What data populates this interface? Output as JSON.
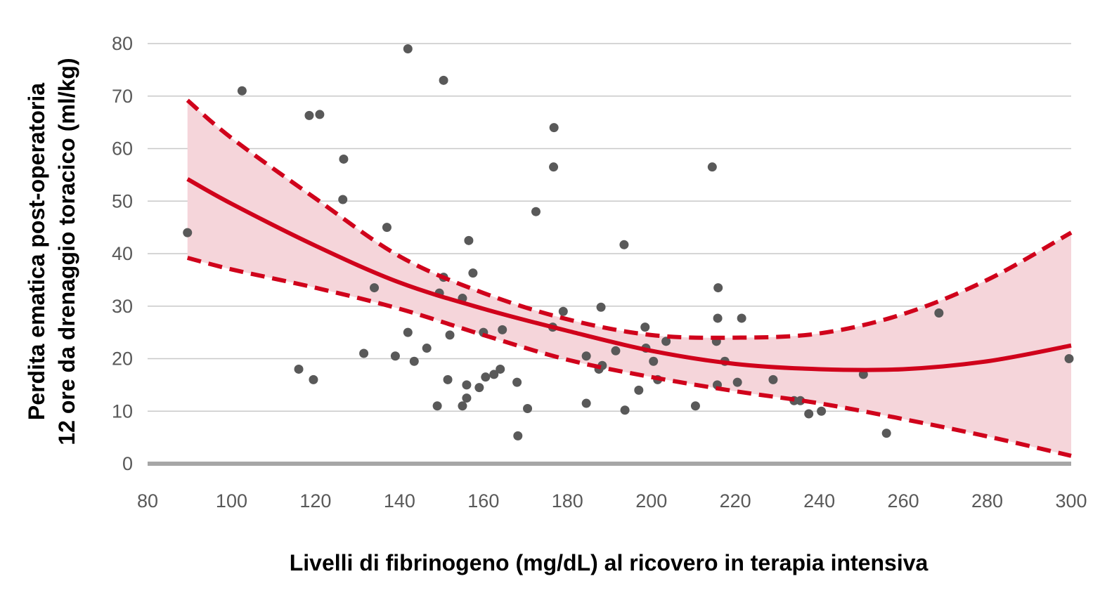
{
  "chart_data": {
    "type": "scatter",
    "title": "",
    "xlabel": "Livelli di fibrinogeno (mg/dL) al ricovero in terapia intensiva",
    "ylabel_lines": [
      "Perdita ematica post-operatoria",
      "12 ore da drenaggio toracico (ml/kg)"
    ],
    "xlim": [
      80,
      300
    ],
    "ylim": [
      0,
      80
    ],
    "x_ticks": [
      80,
      100,
      120,
      140,
      160,
      180,
      200,
      220,
      240,
      260,
      280,
      300
    ],
    "y_ticks": [
      0,
      10,
      20,
      30,
      40,
      50,
      60,
      70,
      80
    ],
    "grid": true,
    "colors": {
      "points": "#595959",
      "fit": "#d0021b",
      "band": "#f5d5da",
      "grid": "#c8c8c8",
      "xaxis": "#a6a6a6"
    },
    "points": [
      [
        89.5,
        44
      ],
      [
        102.5,
        71
      ],
      [
        116,
        18
      ],
      [
        118.5,
        66.3
      ],
      [
        119.5,
        16
      ],
      [
        121,
        66.5
      ],
      [
        126.5,
        50.3
      ],
      [
        126.7,
        58
      ],
      [
        131.5,
        21
      ],
      [
        134,
        33.5
      ],
      [
        137,
        45
      ],
      [
        139,
        20.5
      ],
      [
        142,
        79
      ],
      [
        142,
        25
      ],
      [
        143.5,
        19.5
      ],
      [
        146.5,
        22
      ],
      [
        149,
        11
      ],
      [
        149.5,
        32.5
      ],
      [
        150.5,
        73
      ],
      [
        150.5,
        35.5
      ],
      [
        151.5,
        16
      ],
      [
        152,
        24.5
      ],
      [
        155,
        11
      ],
      [
        155,
        31.5
      ],
      [
        156,
        12.5
      ],
      [
        156,
        15
      ],
      [
        156.5,
        42.5
      ],
      [
        157.5,
        36.3
      ],
      [
        159,
        14.5
      ],
      [
        160,
        25
      ],
      [
        160.5,
        16.5
      ],
      [
        162.5,
        17
      ],
      [
        164,
        18
      ],
      [
        164.5,
        25.5
      ],
      [
        168,
        15.5
      ],
      [
        168.2,
        5.3
      ],
      [
        170.5,
        10.5
      ],
      [
        172.5,
        48
      ],
      [
        176.5,
        26
      ],
      [
        176.7,
        56.5
      ],
      [
        176.8,
        64
      ],
      [
        179,
        29
      ],
      [
        184.5,
        20.5
      ],
      [
        184.5,
        11.5
      ],
      [
        187.5,
        18
      ],
      [
        188,
        29.8
      ],
      [
        188.3,
        18.7
      ],
      [
        191.5,
        21.5
      ],
      [
        193.5,
        41.7
      ],
      [
        193.7,
        10.2
      ],
      [
        197,
        14
      ],
      [
        198.5,
        26
      ],
      [
        198.7,
        22
      ],
      [
        200.5,
        19.5
      ],
      [
        201.5,
        16
      ],
      [
        203.5,
        23.3
      ],
      [
        210.5,
        11
      ],
      [
        214.5,
        56.5
      ],
      [
        215.5,
        23.3
      ],
      [
        215.7,
        15
      ],
      [
        215.8,
        27.7
      ],
      [
        215.9,
        33.5
      ],
      [
        217.5,
        19.5
      ],
      [
        220.5,
        15.5
      ],
      [
        221.5,
        27.7
      ],
      [
        229,
        16
      ],
      [
        234,
        12
      ],
      [
        235.5,
        12
      ],
      [
        237.5,
        9.5
      ],
      [
        240.5,
        10
      ],
      [
        250.5,
        17
      ],
      [
        256,
        5.8
      ],
      [
        268.5,
        28.7
      ],
      [
        299.5,
        20
      ]
    ],
    "fit": {
      "x": [
        89.5,
        100,
        120,
        140,
        160,
        180,
        200,
        220,
        240,
        260,
        280,
        300
      ],
      "y": [
        54.2,
        49.5,
        41.5,
        34.5,
        29.5,
        25.3,
        21.5,
        19,
        18,
        18,
        19.5,
        22.5
      ]
    },
    "ci_upper": {
      "x": [
        89.5,
        100,
        120,
        140,
        160,
        180,
        200,
        220,
        240,
        260,
        280,
        300
      ],
      "y": [
        69.2,
        62,
        50.5,
        39.5,
        32.5,
        27.5,
        24.5,
        24,
        24.8,
        28.5,
        35,
        44
      ]
    },
    "ci_lower": {
      "x": [
        89.5,
        100,
        120,
        140,
        160,
        180,
        200,
        220,
        240,
        260,
        280,
        300
      ],
      "y": [
        39.2,
        37,
        33.5,
        29.5,
        24.5,
        19.8,
        16.5,
        13.8,
        11.5,
        8.5,
        5.2,
        1.5
      ]
    }
  }
}
